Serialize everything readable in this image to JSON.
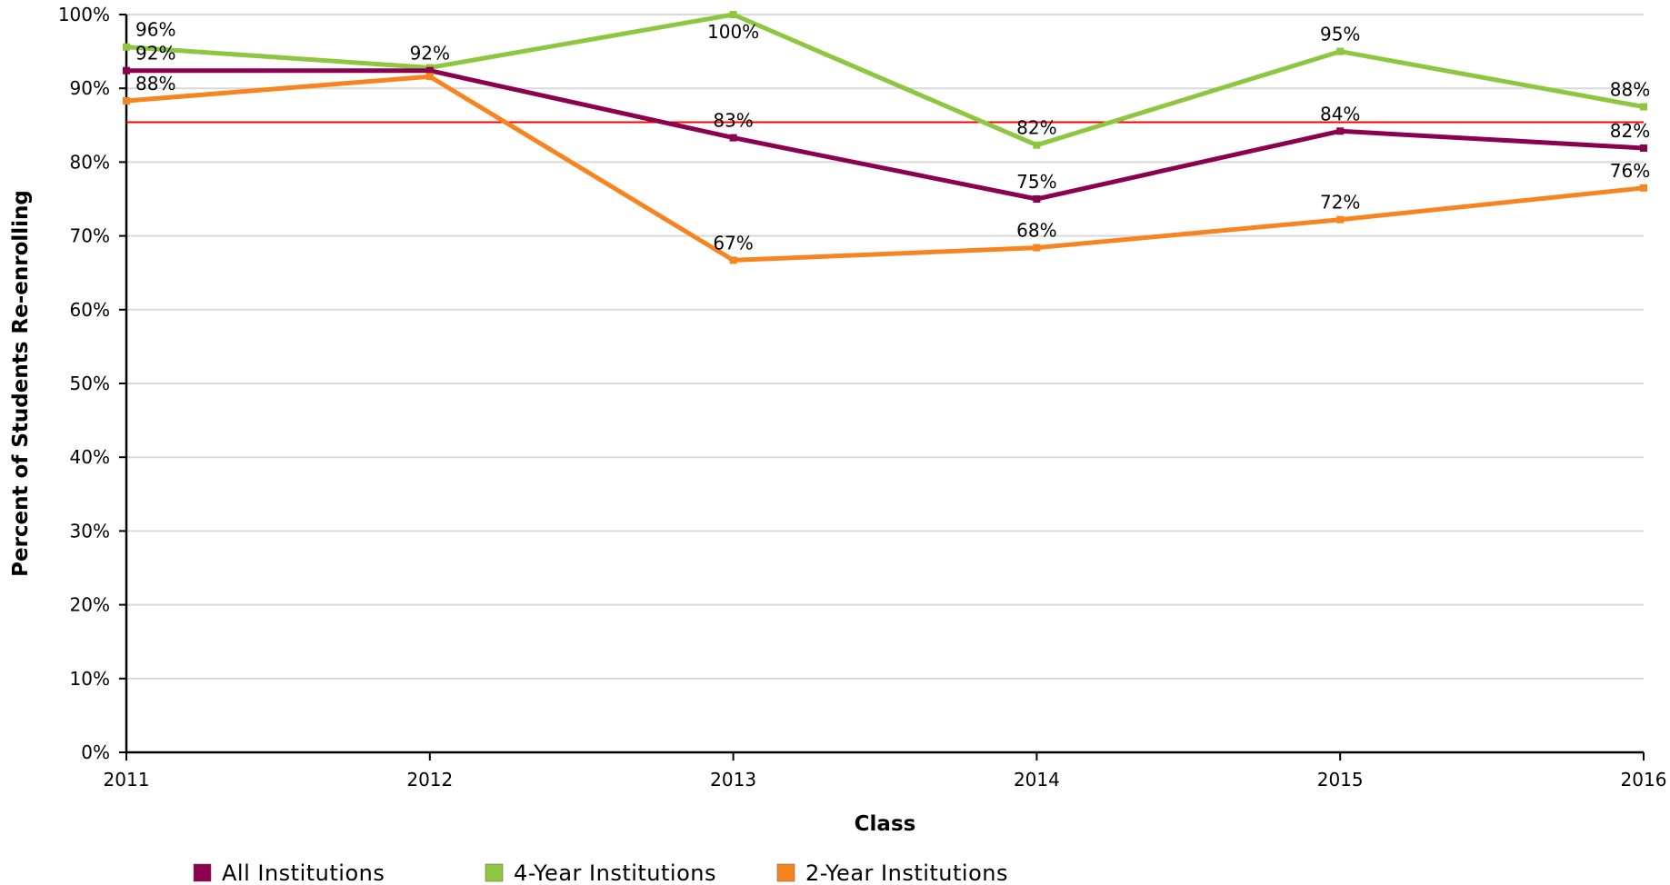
{
  "chart_data": {
    "type": "line",
    "xlabel": "Class",
    "ylabel": "Percent of Students Re-enrolling",
    "ylim": [
      0,
      100
    ],
    "y_ticks": [
      "0%",
      "10%",
      "20%",
      "30%",
      "40%",
      "50%",
      "60%",
      "70%",
      "80%",
      "90%",
      "100%"
    ],
    "y_tick_values": [
      0,
      10,
      20,
      30,
      40,
      50,
      60,
      70,
      80,
      90,
      100
    ],
    "x": [
      "2011",
      "2012",
      "2013",
      "2014",
      "2015",
      "2016"
    ],
    "grid": true,
    "legend_position": "bottom-left",
    "reference_line": {
      "value": 85.4,
      "color": "#ff0000"
    },
    "series": [
      {
        "name": "All Institutions",
        "color": "#8c0050",
        "values": [
          92.4,
          92.4,
          83.3,
          75.0,
          84.2,
          81.9
        ],
        "labels": [
          "92%",
          "92%",
          "83%",
          "75%",
          "84%",
          "82%"
        ]
      },
      {
        "name": "4-Year Institutions",
        "color": "#8dc63f",
        "values": [
          95.6,
          92.8,
          100.0,
          82.3,
          95.0,
          87.5
        ],
        "labels": [
          "96%",
          "",
          "100%",
          "82%",
          "95%",
          "88%"
        ]
      },
      {
        "name": "2-Year Institutions",
        "color": "#f7841e",
        "values": [
          88.3,
          91.6,
          66.7,
          68.4,
          72.2,
          76.5
        ],
        "labels": [
          "88%",
          "",
          "67%",
          "68%",
          "72%",
          "76%"
        ]
      }
    ]
  }
}
